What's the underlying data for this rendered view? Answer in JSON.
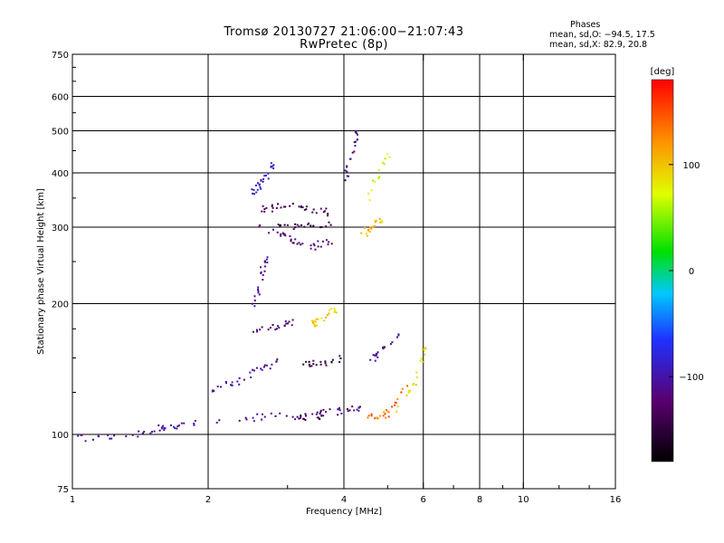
{
  "header": {
    "title_line1": "Tromsø 20130727 21:06:00−21:07:43",
    "title_line2": "RwPretec (8p)",
    "stats_heading": "Phases",
    "stats_o": "mean, sd,O: −94.5, 17.5",
    "stats_x": "mean, sd,X:  82.9, 20.8"
  },
  "chart_data": {
    "type": "scatter",
    "title": "Tromsø 20130727 21:06:00−21:07:43",
    "subtitle": "RwPretec (8p)",
    "xlabel": "Frequency [MHz]",
    "ylabel": "Stationary phase Virtual Height [km]",
    "x_scale": "log",
    "y_scale": "log",
    "xlim": [
      1,
      16
    ],
    "ylim": [
      75,
      750
    ],
    "x_ticks": [
      1,
      2,
      4,
      6,
      8,
      10,
      16
    ],
    "x_tick_labels": [
      "1",
      "2",
      "4",
      "6",
      "8",
      "10",
      "16"
    ],
    "y_ticks": [
      75,
      100,
      200,
      300,
      400,
      500,
      600,
      750
    ],
    "y_tick_labels": [
      "75",
      "100",
      "200",
      "300",
      "400",
      "500",
      "600",
      "750"
    ],
    "x_minor_ticks": [
      3,
      5,
      7,
      9,
      12,
      14
    ],
    "y_minor_ticks": [
      125,
      150,
      175,
      250,
      350,
      450,
      550,
      650,
      700
    ],
    "grid": true,
    "colorbar": {
      "label": "[deg]",
      "min": -180,
      "max": 180,
      "ticks": [
        -100,
        0,
        100
      ],
      "tick_labels": [
        "−100",
        "0",
        "100"
      ]
    },
    "traces": [
      {
        "f": [
          1.0,
          1.3,
          1.6,
          2.0
        ],
        "h": [
          98,
          100,
          104,
          108
        ],
        "phase": -105,
        "density": 40
      },
      {
        "f": [
          2.0,
          2.6,
          3.2,
          3.8,
          4.4
        ],
        "h": [
          108,
          110,
          111,
          113,
          116
        ],
        "phase": -112,
        "density": 45
      },
      {
        "f": [
          3.1,
          3.6
        ],
        "h": [
          110,
          111
        ],
        "phase": -140,
        "density": 14
      },
      {
        "f": [
          4.4,
          4.8,
          5.1,
          5.5
        ],
        "h": [
          112,
          110,
          115,
          130
        ],
        "phase": 140,
        "density": 22
      },
      {
        "f": [
          4.6,
          5.2,
          5.7,
          6.0
        ],
        "h": [
          108,
          115,
          130,
          160
        ],
        "phase": 95,
        "density": 24
      },
      {
        "f": [
          2.0,
          2.4,
          2.9
        ],
        "h": [
          125,
          135,
          150
        ],
        "phase": -100,
        "density": 30
      },
      {
        "f": [
          3.2,
          3.5,
          3.9
        ],
        "h": [
          145,
          146,
          150
        ],
        "phase": -150,
        "density": 20
      },
      {
        "f": [
          2.5,
          2.8,
          3.1
        ],
        "h": [
          175,
          178,
          182
        ],
        "phase": -120,
        "density": 20
      },
      {
        "f": [
          3.4,
          3.8
        ],
        "h": [
          180,
          195
        ],
        "phase": 95,
        "density": 24
      },
      {
        "f": [
          4.6,
          5.3
        ],
        "h": [
          150,
          170
        ],
        "phase": -110,
        "density": 18
      },
      {
        "f": [
          2.5,
          2.7
        ],
        "h": [
          200,
          260
        ],
        "phase": -110,
        "density": 22
      },
      {
        "f": [
          2.6,
          3.0,
          3.4,
          3.8
        ],
        "h": [
          300,
          285,
          272,
          280
        ],
        "phase": -120,
        "density": 34
      },
      {
        "f": [
          2.8,
          3.2,
          3.7
        ],
        "h": [
          310,
          300,
          305
        ],
        "phase": -145,
        "density": 24
      },
      {
        "f": [
          2.6,
          3.1,
          3.7
        ],
        "h": [
          330,
          340,
          325
        ],
        "phase": -135,
        "density": 32
      },
      {
        "f": [
          2.5,
          2.8
        ],
        "h": [
          360,
          420
        ],
        "phase": -90,
        "density": 26
      },
      {
        "f": [
          4.0,
          4.3
        ],
        "h": [
          380,
          520
        ],
        "phase": -110,
        "density": 20
      },
      {
        "f": [
          4.4,
          4.9
        ],
        "h": [
          290,
          320
        ],
        "phase": 100,
        "density": 18
      },
      {
        "f": [
          4.5,
          5.0
        ],
        "h": [
          350,
          450
        ],
        "phase": 70,
        "density": 14
      }
    ]
  }
}
